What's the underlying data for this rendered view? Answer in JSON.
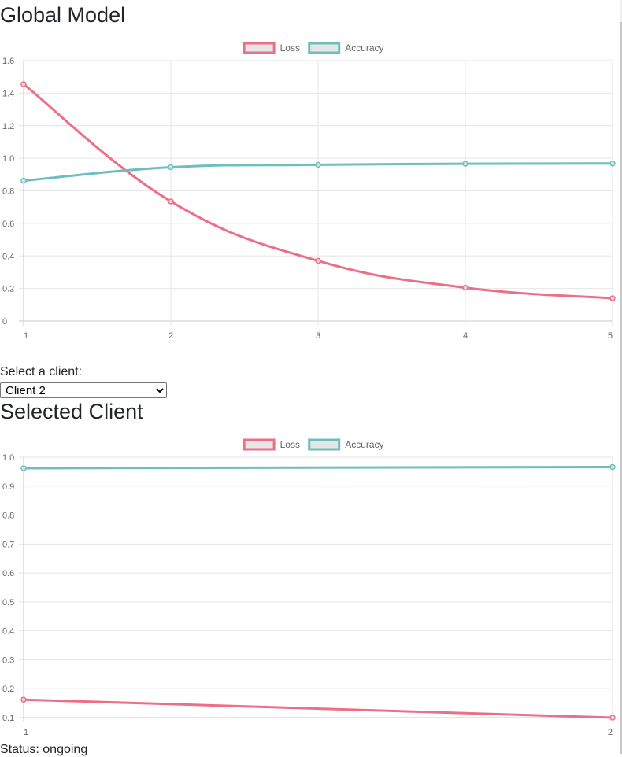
{
  "global_section": {
    "title": "Global Model"
  },
  "client_selector": {
    "label": "Select a client:",
    "selected": "Client 2"
  },
  "client_section": {
    "title": "Selected Client"
  },
  "status": {
    "label": "Status:",
    "value": "ongoing"
  },
  "chart_data": [
    {
      "id": "global",
      "type": "line",
      "x": [
        1,
        2,
        3,
        4,
        5
      ],
      "ylim": [
        0,
        1.6
      ],
      "yticks": [
        0,
        0.2,
        0.4,
        0.6,
        0.8,
        1.0,
        1.2,
        1.4,
        1.6
      ],
      "ytick_labels": [
        "0",
        "0.2",
        "0.4",
        "0.6",
        "0.8",
        "1.0",
        "1.2",
        "1.4",
        "1.6"
      ],
      "grid": true,
      "legend_position": "top",
      "series": [
        {
          "name": "Loss",
          "color": "#ec6f87",
          "values": [
            1.455,
            0.735,
            0.37,
            0.205,
            0.14
          ]
        },
        {
          "name": "Accuracy",
          "color": "#6cbfbc",
          "values": [
            0.862,
            0.945,
            0.96,
            0.966,
            0.968
          ]
        }
      ]
    },
    {
      "id": "client",
      "type": "line",
      "x": [
        1,
        2
      ],
      "ylim": [
        0.1,
        1.0
      ],
      "yticks": [
        0.1,
        0.2,
        0.3,
        0.4,
        0.5,
        0.6,
        0.7,
        0.8,
        0.9,
        1.0
      ],
      "ytick_labels": [
        "0.1",
        "0.2",
        "0.3",
        "0.4",
        "0.5",
        "0.6",
        "0.7",
        "0.8",
        "0.9",
        "1.0"
      ],
      "grid": true,
      "legend_position": "top",
      "series": [
        {
          "name": "Loss",
          "color": "#ec6f87",
          "values": [
            0.162,
            0.1
          ]
        },
        {
          "name": "Accuracy",
          "color": "#6cbfbc",
          "values": [
            0.962,
            0.966
          ]
        }
      ]
    }
  ]
}
